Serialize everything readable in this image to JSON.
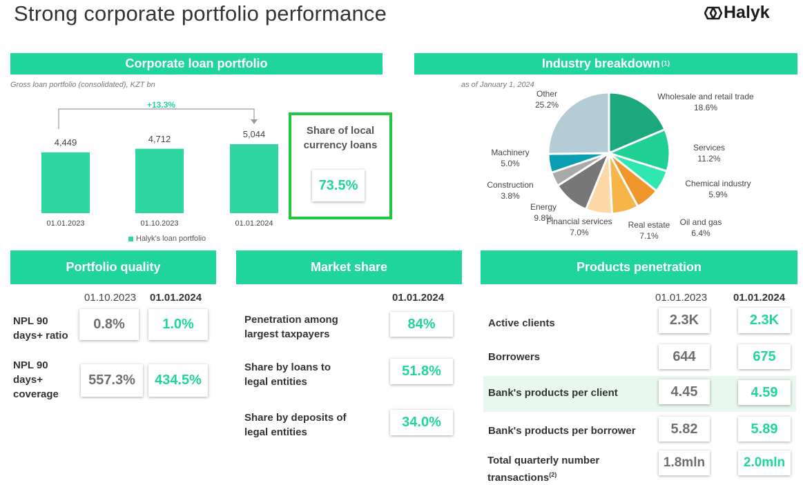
{
  "page": {
    "title": "Strong corporate portfolio performance",
    "logo_text": "Halyk",
    "colors": {
      "accent": "#1fd59b",
      "highlight_border": "#21c740",
      "text": "#333333"
    }
  },
  "loan": {
    "header": "Corporate loan portfolio",
    "subtitle": "Gross loan portfolio (consolidated), KZT bn",
    "growth": "+13.3%",
    "legend": "Halyk's loan portfolio",
    "share_title": "Share of local currency loans",
    "share_value": "73.5%"
  },
  "chart_data": [
    {
      "type": "bar",
      "categories": [
        "01.01.2023",
        "01.10.2023",
        "01.01.2024"
      ],
      "values": [
        4449,
        4712,
        5044
      ],
      "value_labels": [
        "4,449",
        "4,712",
        "5,044"
      ],
      "series": [
        {
          "name": "Halyk's loan portfolio",
          "values": [
            4449,
            4712,
            5044
          ]
        }
      ],
      "annotation": "+13.3%",
      "legend": "bottom"
    },
    {
      "type": "pie",
      "title": "Industry breakdown",
      "subtitle": "as of January 1, 2024",
      "labels": [
        "Wholesale and retail trade",
        "Services",
        "Chemical industry",
        "Oil and gas",
        "Real estate",
        "Financial services",
        "Energy",
        "Construction",
        "Machinery",
        "Other"
      ],
      "values": [
        18.6,
        11.2,
        5.9,
        6.4,
        7.1,
        7.0,
        9.8,
        3.8,
        5.0,
        25.2
      ],
      "value_labels": [
        "18.6%",
        "11.2%",
        "5.9%",
        "6.4%",
        "7.1%",
        "7.0%",
        "9.8%",
        "3.8%",
        "5.0%",
        "25.2%"
      ],
      "colors": [
        "#1aa87c",
        "#1fcf94",
        "#2ee8b0",
        "#f0952a",
        "#f7b449",
        "#fbd8a6",
        "#777777",
        "#a9a9a9",
        "#0a9fb0",
        "#b3ccd6"
      ]
    }
  ],
  "industry": {
    "header": "Industry breakdown",
    "header_sup": "(1)",
    "subtitle": "as of January 1, 2024"
  },
  "quality": {
    "header": "Portfolio quality",
    "col1": "01.10.2023",
    "col2": "01.01.2024",
    "rows": [
      {
        "label": "NPL 90 days+ ratio",
        "v1": "0.8%",
        "v2": "1.0%"
      },
      {
        "label": "NPL 90 days+ coverage",
        "v1": "557.3%",
        "v2": "434.5%"
      }
    ]
  },
  "market": {
    "header": "Market share",
    "col": "01.01.2024",
    "rows": [
      {
        "label": "Penetration among largest taxpayers",
        "v": "84%"
      },
      {
        "label": "Share by loans to legal entities",
        "v": "51.8%"
      },
      {
        "label": "Share by deposits of legal entities",
        "v": "34.0%"
      }
    ]
  },
  "products": {
    "header": "Products penetration",
    "col1": "01.01.2023",
    "col2": "01.01.2024",
    "rows": [
      {
        "label": "Active clients",
        "v1": "2.3K",
        "v2": "2.3K"
      },
      {
        "label": "Borrowers",
        "v1": "644",
        "v2": "675"
      },
      {
        "label": "Bank's products per client",
        "v1": "4.45",
        "v2": "4.59"
      },
      {
        "label": "Bank's products per borrower",
        "v1": "5.82",
        "v2": "5.89"
      },
      {
        "label": "Total quarterly number transactions",
        "label_sup": "(2)",
        "v1": "1.8mln",
        "v2": "2.0mln"
      }
    ]
  }
}
